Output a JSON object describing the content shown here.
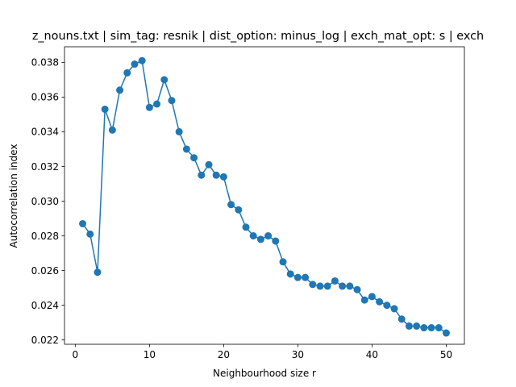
{
  "chart_data": {
    "type": "line",
    "title": "z_nouns.txt | sim_tag: resnik | dist_option: minus_log | exch_mat_opt: s | exch",
    "xlabel": "Neighbourhood size r",
    "ylabel": "Autocorrelation index",
    "xlim": [
      -1.45,
      52.45
    ],
    "ylim": [
      0.02175,
      0.0389
    ],
    "xticks": [
      0,
      10,
      20,
      30,
      40,
      50
    ],
    "xtick_labels": [
      "0",
      "10",
      "20",
      "30",
      "40",
      "50"
    ],
    "yticks": [
      0.022,
      0.024,
      0.026,
      0.028,
      0.03,
      0.032,
      0.034,
      0.036,
      0.038
    ],
    "ytick_labels": [
      "0.022",
      "0.024",
      "0.026",
      "0.028",
      "0.030",
      "0.032",
      "0.034",
      "0.036",
      "0.038"
    ],
    "grid": false,
    "color": "#1f77b4",
    "series": [
      {
        "x": [
          1,
          2,
          3,
          4,
          5,
          6,
          7,
          8,
          9,
          10,
          11,
          12,
          13,
          14,
          15,
          16,
          17,
          18,
          19,
          20,
          21,
          22,
          23,
          24,
          25,
          26,
          27,
          28,
          29,
          30,
          31,
          32,
          33,
          34,
          35,
          36,
          37,
          38,
          39,
          40,
          41,
          42,
          43,
          44,
          45,
          46,
          47,
          48,
          49,
          50
        ],
        "y": [
          0.0287,
          0.0281,
          0.0259,
          0.0353,
          0.0341,
          0.0364,
          0.0374,
          0.0379,
          0.0381,
          0.0354,
          0.0356,
          0.037,
          0.0358,
          0.034,
          0.033,
          0.0325,
          0.0315,
          0.0321,
          0.0315,
          0.0314,
          0.0298,
          0.0295,
          0.0285,
          0.028,
          0.0278,
          0.028,
          0.0277,
          0.0265,
          0.0258,
          0.0256,
          0.0256,
          0.0252,
          0.0251,
          0.0251,
          0.0254,
          0.0251,
          0.0251,
          0.0249,
          0.0243,
          0.0245,
          0.0242,
          0.024,
          0.0238,
          0.0232,
          0.0228,
          0.0228,
          0.0227,
          0.0227,
          0.0227,
          0.0224
        ]
      }
    ]
  }
}
